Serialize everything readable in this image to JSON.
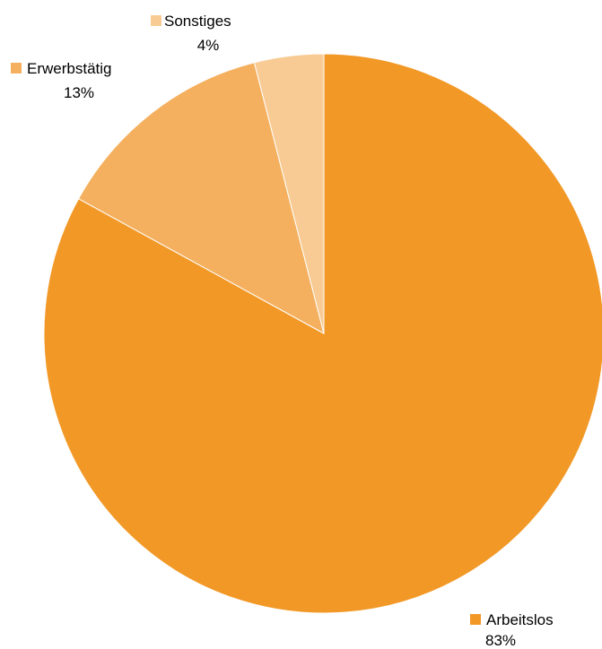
{
  "chart_data": {
    "type": "pie",
    "title": "",
    "slices": [
      {
        "label": "Arbeitslos",
        "value": 83,
        "value_label": "83%",
        "color": "#F29826"
      },
      {
        "label": "Erwerbstätig",
        "value": 13,
        "value_label": "13%",
        "color": "#F4B05E"
      },
      {
        "label": "Sonstiges",
        "value": 4,
        "value_label": "4%",
        "color": "#F8CB94"
      }
    ],
    "start_angle_deg": 0,
    "direction": "clockwise",
    "legend": "none",
    "labels_outside": true
  }
}
